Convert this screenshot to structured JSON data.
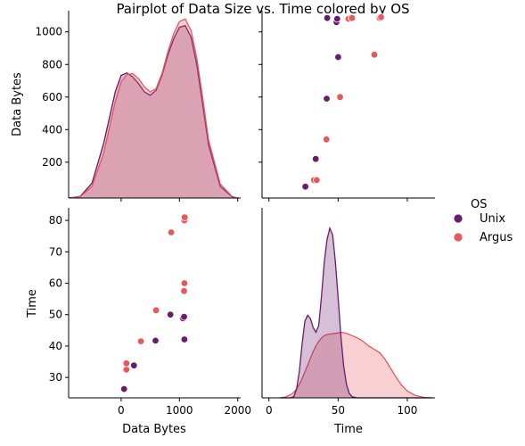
{
  "chart_data": {
    "type": "scatter",
    "title": "Pairplot of Data Size vs. Time colored by OS",
    "variables": [
      "Data Bytes",
      "Time"
    ],
    "legend": {
      "title": "OS",
      "position": "right",
      "entries": [
        {
          "name": "Unix",
          "color": "#6a1b6e"
        },
        {
          "name": "Argus",
          "color": "#e8575a"
        }
      ]
    },
    "axes": {
      "data_bytes": {
        "label": "Data Bytes",
        "y_ticks": [
          200,
          400,
          600,
          800,
          1000
        ],
        "x_ticks": [
          0,
          1000,
          2000
        ],
        "y_range": [
          -20,
          1130
        ],
        "x_range": [
          -900,
          2050
        ]
      },
      "time": {
        "label": "Time",
        "y_ticks": [
          30,
          40,
          50,
          60,
          70,
          80
        ],
        "x_ticks": [
          0,
          50,
          100
        ],
        "y_range": [
          23.5,
          84
        ],
        "x_range": [
          -5,
          120
        ]
      }
    },
    "series": [
      {
        "name": "Unix",
        "color": "#6a1b6e",
        "data_bytes": [
          50,
          220,
          590,
          845,
          1060,
          1080,
          1085
        ],
        "time": [
          26.3,
          33.8,
          41.7,
          50.0,
          48.8,
          49.3,
          42.1
        ]
      },
      {
        "name": "Argus",
        "color": "#e8575a",
        "data_bytes": [
          90,
          90,
          340,
          600,
          860,
          1080,
          1085,
          1085,
          1085,
          1090
        ],
        "time": [
          32.5,
          34.5,
          41.5,
          51.4,
          76.2,
          57.5,
          59.8,
          60.0,
          80.0,
          81.0
        ]
      }
    ],
    "kde": {
      "data_bytes": {
        "x": [
          -900,
          -700,
          -500,
          -300,
          -100,
          0,
          100,
          200,
          300,
          400,
          500,
          600,
          700,
          800,
          900,
          1000,
          1100,
          1200,
          1300,
          1400,
          1500,
          1700,
          1900,
          2000
        ],
        "Unix": [
          0,
          10,
          90,
          330,
          640,
          740,
          755,
          730,
          690,
          640,
          620,
          650,
          740,
          860,
          960,
          1030,
          1040,
          970,
          800,
          560,
          320,
          70,
          8,
          0
        ],
        "Argus": [
          0,
          8,
          70,
          270,
          580,
          700,
          745,
          750,
          720,
          670,
          640,
          660,
          750,
          880,
          990,
          1065,
          1080,
          1010,
          840,
          600,
          350,
          85,
          10,
          0
        ]
      },
      "time": {
        "x": [
          8,
          12,
          16,
          18,
          20,
          22,
          24,
          26,
          28,
          30,
          32,
          34,
          36,
          38,
          40,
          42,
          44,
          46,
          48,
          50,
          52,
          54,
          56,
          58,
          60,
          64,
          68,
          72,
          76,
          80,
          84,
          88,
          92,
          96,
          100,
          106,
          112,
          118
        ],
        "Unix": [
          0,
          0,
          0,
          0.6,
          4,
          12,
          24,
          34,
          36.5,
          35,
          31,
          29,
          32,
          45,
          60,
          70,
          75,
          72,
          60,
          44,
          27,
          14,
          6,
          2,
          0.5,
          0,
          0,
          0,
          0,
          0,
          0,
          0,
          0,
          0,
          0,
          0,
          0,
          0
        ],
        "Argus": [
          0,
          0.4,
          1.5,
          2.5,
          4,
          6,
          8.5,
          11.5,
          14.5,
          17.5,
          20.5,
          23,
          25,
          26.5,
          27.5,
          28,
          28.2,
          28.4,
          28.5,
          28.7,
          29,
          28.8,
          28.5,
          28,
          27.5,
          26.5,
          25,
          23,
          21.5,
          20,
          17,
          13,
          9,
          5.5,
          3,
          1,
          0.2,
          0
        ]
      }
    }
  }
}
